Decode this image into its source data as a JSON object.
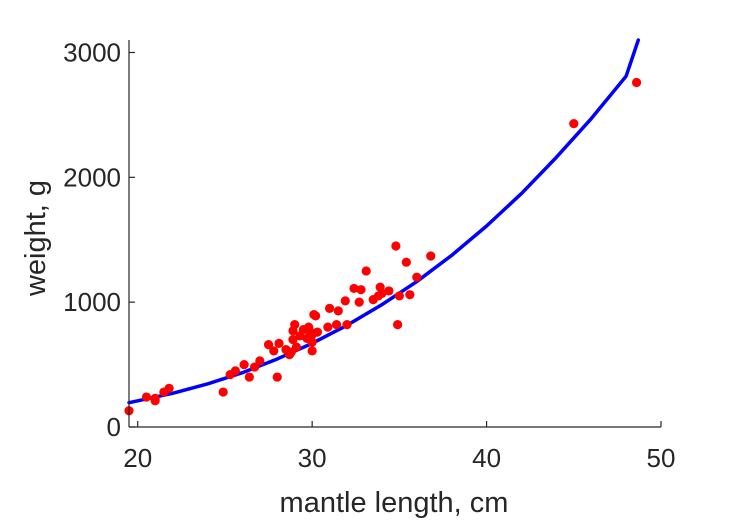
{
  "chart_data": {
    "type": "scatter",
    "xlabel": "mantle length, cm",
    "ylabel": "weight, g",
    "xlim": [
      19.5,
      50
    ],
    "ylim": [
      0,
      3100
    ],
    "xticks": [
      20,
      30,
      40,
      50
    ],
    "yticks": [
      0,
      1000,
      2000,
      3000
    ],
    "grid": false,
    "legend": "none",
    "colors": {
      "points": "#ff0000",
      "fit_line": "#0000ff",
      "axes": "#262626"
    },
    "fit_line": {
      "x": [
        19.5,
        22,
        24,
        26,
        28,
        30,
        32,
        34,
        36,
        38,
        40,
        42,
        44,
        46,
        48,
        48.7
      ],
      "y": [
        195,
        270,
        345,
        435,
        545,
        670,
        815,
        980,
        1165,
        1375,
        1610,
        1870,
        2160,
        2470,
        2810,
        3100
      ]
    },
    "points": {
      "x": [
        19.5,
        20.5,
        21.0,
        21.0,
        21.5,
        21.8,
        24.9,
        25.3,
        25.6,
        26.1,
        26.4,
        26.7,
        27.0,
        27.5,
        27.8,
        28.0,
        28.1,
        28.5,
        28.7,
        28.8,
        28.9,
        28.9,
        29.0,
        29.1,
        29.3,
        29.5,
        29.7,
        29.8,
        29.9,
        30.0,
        30.0,
        30.0,
        30.1,
        30.2,
        30.3,
        30.9,
        31.0,
        31.4,
        31.5,
        31.9,
        32.0,
        32.4,
        32.7,
        32.8,
        33.1,
        33.5,
        33.8,
        33.9,
        34.0,
        34.4,
        34.8,
        34.9,
        35.0,
        35.4,
        35.6,
        36.0,
        36.8,
        45.0,
        48.6
      ],
      "y": [
        130,
        240,
        230,
        210,
        280,
        310,
        280,
        420,
        450,
        500,
        400,
        480,
        530,
        660,
        610,
        400,
        670,
        620,
        580,
        600,
        700,
        770,
        820,
        640,
        730,
        780,
        710,
        800,
        760,
        740,
        610,
        680,
        900,
        890,
        760,
        800,
        950,
        820,
        930,
        1010,
        820,
        1110,
        1000,
        1100,
        1250,
        1020,
        1050,
        1120,
        1070,
        1090,
        1450,
        820,
        1050,
        1320,
        1060,
        1200,
        1370,
        2430,
        2760
      ]
    }
  }
}
